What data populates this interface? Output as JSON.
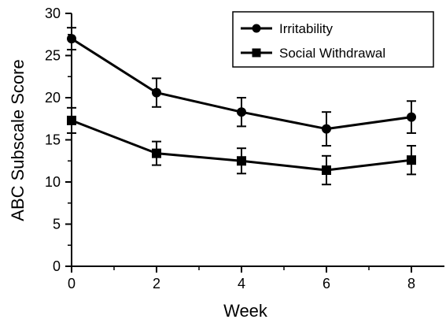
{
  "chart_data": {
    "type": "line",
    "title": "",
    "xlabel": "Week",
    "ylabel": "ABC Subscale Score",
    "x": [
      0,
      2,
      4,
      6,
      8
    ],
    "xlim": [
      0,
      9
    ],
    "ylim": [
      0,
      30
    ],
    "xticks": [
      "0",
      "2",
      "4",
      "6",
      "8"
    ],
    "xminorticks": [
      1,
      3,
      5,
      7,
      9
    ],
    "yticks": [
      "0",
      "5",
      "10",
      "15",
      "20",
      "25",
      "30"
    ],
    "yminorticks": [
      2.5,
      7.5,
      12.5,
      17.5,
      22.5,
      27.5
    ],
    "grid": false,
    "legend_position": "top-right",
    "error_bars": true,
    "series": [
      {
        "name": "Irritability",
        "marker": "circle",
        "color": "#000000",
        "values": [
          27.0,
          20.6,
          18.3,
          16.3,
          17.7
        ],
        "error": [
          1.3,
          1.7,
          1.7,
          2.0,
          1.9
        ]
      },
      {
        "name": "Social Withdrawal",
        "marker": "square",
        "color": "#000000",
        "values": [
          17.3,
          13.4,
          12.5,
          11.4,
          12.6
        ],
        "error": [
          1.5,
          1.4,
          1.5,
          1.7,
          1.7
        ]
      }
    ]
  }
}
